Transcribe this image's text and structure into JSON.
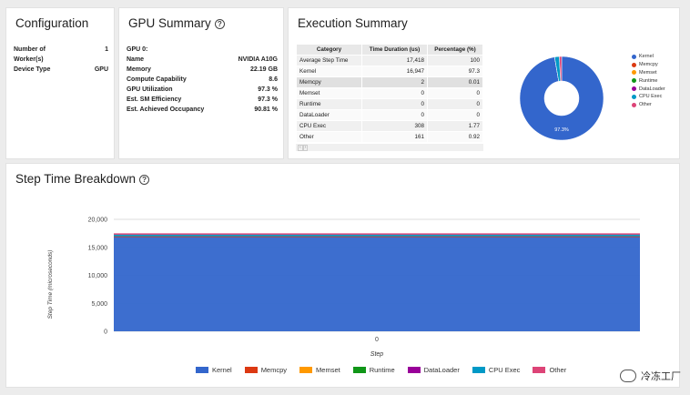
{
  "configuration": {
    "title": "Configuration",
    "rows": [
      {
        "label": "Number of Worker(s)",
        "value": "1"
      },
      {
        "label": "Device Type",
        "value": "GPU"
      }
    ]
  },
  "gpu_summary": {
    "title": "GPU Summary",
    "gpu_label": "GPU 0:",
    "rows": [
      {
        "label": "Name",
        "value": "NVIDIA A10G"
      },
      {
        "label": "Memory",
        "value": "22.19 GB"
      },
      {
        "label": "Compute Capability",
        "value": "8.6"
      },
      {
        "label": "GPU Utilization",
        "value": "97.3 %"
      },
      {
        "label": "Est. SM Efficiency",
        "value": "97.3 %"
      },
      {
        "label": "Est. Achieved Occupancy",
        "value": "90.81 %"
      }
    ]
  },
  "execution_summary": {
    "title": "Execution Summary",
    "columns": [
      "Category",
      "Time Duration (us)",
      "Percentage (%)"
    ],
    "rows": [
      [
        "Average Step Time",
        "17,418",
        "100"
      ],
      [
        "Kernel",
        "16,947",
        "97.3"
      ],
      [
        "Memcpy",
        "2",
        "0.01"
      ],
      [
        "Memset",
        "0",
        "0"
      ],
      [
        "Runtime",
        "0",
        "0"
      ],
      [
        "DataLoader",
        "0",
        "0"
      ],
      [
        "CPU Exec",
        "308",
        "1.77"
      ],
      [
        "Other",
        "161",
        "0.92"
      ]
    ],
    "pager_prev": "‹",
    "pager_next": "›",
    "pie_label": "97.3%",
    "legend": [
      {
        "name": "Kernel",
        "color": "#3366cc"
      },
      {
        "name": "Memcpy",
        "color": "#dc3912"
      },
      {
        "name": "Memset",
        "color": "#ff9900"
      },
      {
        "name": "Runtime",
        "color": "#109618"
      },
      {
        "name": "DataLoader",
        "color": "#990099"
      },
      {
        "name": "CPU Exec",
        "color": "#0099c6"
      },
      {
        "name": "Other",
        "color": "#dd4477"
      }
    ]
  },
  "step_time": {
    "title": "Step Time Breakdown",
    "legend": [
      {
        "name": "Kernel",
        "color": "#3366cc"
      },
      {
        "name": "Memcpy",
        "color": "#dc3912"
      },
      {
        "name": "Memset",
        "color": "#ff9900"
      },
      {
        "name": "Runtime",
        "color": "#109618"
      },
      {
        "name": "DataLoader",
        "color": "#990099"
      },
      {
        "name": "CPU Exec",
        "color": "#0099c6"
      },
      {
        "name": "Other",
        "color": "#dd4477"
      }
    ]
  },
  "chart_data": [
    {
      "type": "pie",
      "title": "",
      "labels": [
        "Kernel",
        "Memcpy",
        "Memset",
        "Runtime",
        "DataLoader",
        "CPU Exec",
        "Other"
      ],
      "values": [
        97.3,
        0.01,
        0,
        0,
        0,
        1.77,
        0.92
      ],
      "colors": [
        "#3366cc",
        "#dc3912",
        "#ff9900",
        "#109618",
        "#990099",
        "#0099c6",
        "#dd4477"
      ],
      "donut": true,
      "slice_label": "97.3%",
      "legend": "right"
    },
    {
      "type": "area",
      "title": "",
      "xlabel": "Step",
      "ylabel": "Step Time (microseconds)",
      "x": [
        0
      ],
      "ylim": [
        0,
        20000
      ],
      "yticks": [
        "0",
        "5,000",
        "10,000",
        "15,000",
        "20,000"
      ],
      "xticks": [
        "0"
      ],
      "stacked": true,
      "grid": true,
      "legend": "bottom",
      "series": [
        {
          "name": "Kernel",
          "values": [
            16947
          ],
          "color": "#3366cc"
        },
        {
          "name": "Memcpy",
          "values": [
            2
          ],
          "color": "#dc3912"
        },
        {
          "name": "Memset",
          "values": [
            0
          ],
          "color": "#ff9900"
        },
        {
          "name": "Runtime",
          "values": [
            0
          ],
          "color": "#109618"
        },
        {
          "name": "DataLoader",
          "values": [
            0
          ],
          "color": "#990099"
        },
        {
          "name": "CPU Exec",
          "values": [
            308
          ],
          "color": "#0099c6"
        },
        {
          "name": "Other",
          "values": [
            161
          ],
          "color": "#dd4477"
        }
      ]
    }
  ],
  "watermark": {
    "text": "冷冻工厂"
  }
}
